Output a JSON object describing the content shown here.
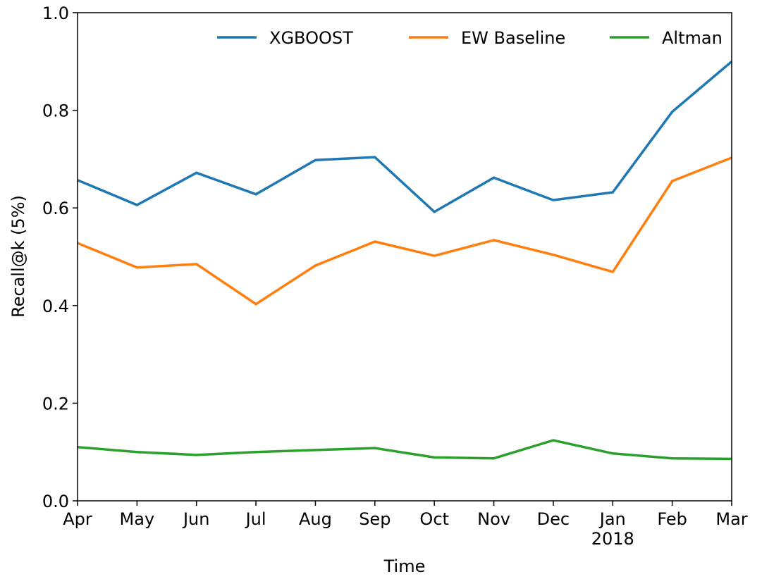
{
  "chart_data": {
    "type": "line",
    "xlabel": "Time",
    "ylabel": "Recall@k (5%)",
    "categories": [
      "Apr",
      "May",
      "Jun",
      "Jul",
      "Aug",
      "Sep",
      "Oct",
      "Nov",
      "Dec",
      "Jan\n2018",
      "Feb",
      "Mar"
    ],
    "series": [
      {
        "name": "XGBOOST",
        "color": "#1f77b4",
        "values": [
          0.657,
          0.606,
          0.672,
          0.628,
          0.698,
          0.704,
          0.592,
          0.662,
          0.616,
          0.632,
          0.797,
          0.9
        ]
      },
      {
        "name": "EW Baseline",
        "color": "#ff7f0e",
        "values": [
          0.528,
          0.478,
          0.485,
          0.403,
          0.482,
          0.531,
          0.502,
          0.534,
          0.504,
          0.469,
          0.655,
          0.703
        ]
      },
      {
        "name": "Altman",
        "color": "#2ca02c",
        "values": [
          0.11,
          0.1,
          0.094,
          0.1,
          0.104,
          0.108,
          0.089,
          0.087,
          0.124,
          0.097,
          0.087,
          0.086
        ]
      }
    ],
    "ylim": [
      0,
      1
    ],
    "yticks": [
      {
        "value": 0,
        "label": "0.0"
      },
      0.2,
      0.4,
      0.6,
      0.8,
      {
        "value": 1,
        "label": "1.0"
      }
    ],
    "legend": "upper right",
    "grid": false
  }
}
